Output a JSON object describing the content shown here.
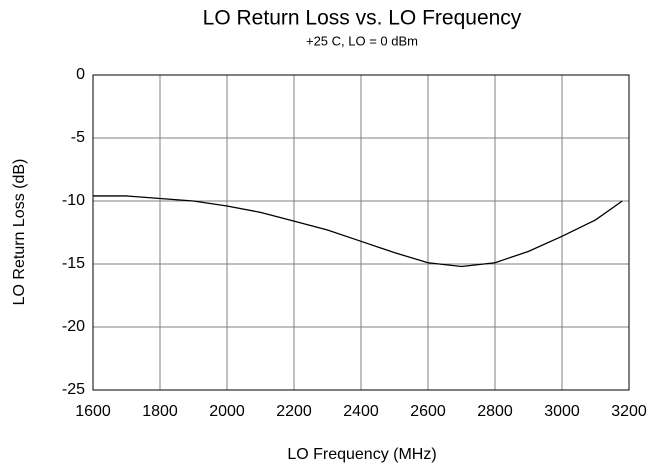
{
  "chart_data": {
    "type": "line",
    "title": "LO Return Loss vs. LO Frequency",
    "subtitle": "+25 C, LO = 0 dBm",
    "x_label": "LO Frequency (MHz)",
    "y_label": "LO Return Loss (dB)",
    "x": [
      1600,
      1700,
      1800,
      1900,
      2000,
      2100,
      2200,
      2300,
      2400,
      2500,
      2600,
      2700,
      2800,
      2900,
      3000,
      3100,
      3180
    ],
    "series": [
      {
        "name": "Return Loss",
        "color": "#000000",
        "values": [
          -9.6,
          -9.6,
          -9.8,
          -10.0,
          -10.4,
          -10.9,
          -11.6,
          -12.3,
          -13.2,
          -14.1,
          -14.9,
          -15.2,
          -14.9,
          -14.0,
          -12.8,
          -11.5,
          -10.0
        ]
      }
    ],
    "xlim": [
      1600,
      3200
    ],
    "xticks": [
      1600,
      1800,
      2000,
      2200,
      2400,
      2600,
      2800,
      3000,
      3200
    ],
    "ylim": [
      -25,
      0
    ],
    "yticks": [
      -25,
      -20,
      -15,
      -10,
      -5,
      0
    ],
    "grid": true
  }
}
